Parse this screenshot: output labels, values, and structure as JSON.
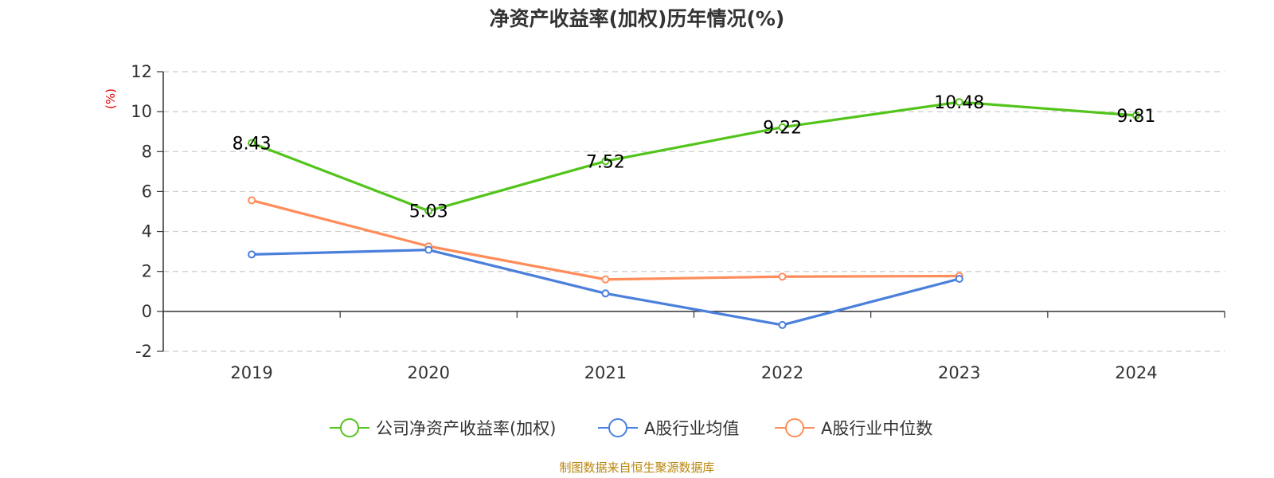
{
  "chart_data": {
    "type": "line",
    "title": "净资产收益率(加权)历年情况(%)",
    "ylabel": "(%)",
    "xlabel": "",
    "categories": [
      "2019",
      "2020",
      "2021",
      "2022",
      "2023",
      "2024"
    ],
    "ylim": [
      -2,
      12
    ],
    "yticks": [
      -2,
      0,
      2,
      4,
      6,
      8,
      10,
      12
    ],
    "grid": true,
    "legend_position": "bottom",
    "series": [
      {
        "name": "公司净资产收益率(加权)",
        "color": "#52c41a",
        "values": [
          8.43,
          5.03,
          7.52,
          9.22,
          10.48,
          9.81
        ],
        "labels": [
          "8.43",
          "5.03",
          "7.52",
          "9.22",
          "10.48",
          "9.81"
        ],
        "show_labels": true
      },
      {
        "name": "A股行业均值",
        "color": "#4a7fdc",
        "values": [
          2.85,
          3.08,
          0.9,
          -0.68,
          1.63,
          null
        ],
        "show_labels": false
      },
      {
        "name": "A股行业中位数",
        "color": "#ff8c5a",
        "values": [
          5.56,
          3.26,
          1.6,
          1.74,
          1.77,
          null
        ],
        "show_labels": false
      }
    ]
  },
  "footer": {
    "source": "制图数据来自恒生聚源数据库"
  }
}
